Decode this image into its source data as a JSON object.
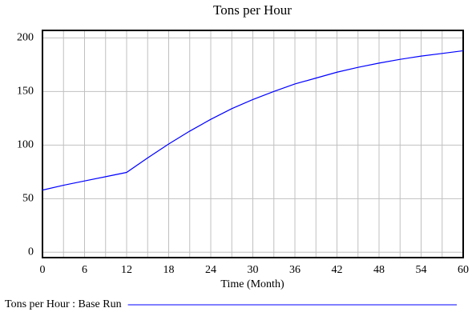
{
  "chart_data": {
    "type": "line",
    "title": "Tons per Hour",
    "x_label": "Time (Month)",
    "x": [
      0,
      3,
      6,
      9,
      12,
      15,
      18,
      21,
      24,
      27,
      30,
      33,
      36,
      39,
      42,
      45,
      48,
      51,
      54,
      57,
      60
    ],
    "series": [
      {
        "name": "Tons per Hour : Base Run",
        "color": "#0000ff",
        "values": [
          58,
          62.5,
          66.5,
          70.5,
          74.5,
          88,
          101,
          113,
          124,
          134,
          142.5,
          150,
          157,
          162.5,
          168,
          172.5,
          176.5,
          180,
          183,
          185.5,
          188
        ]
      }
    ],
    "xlim": [
      0,
      60
    ],
    "xticks": [
      0,
      6,
      12,
      18,
      24,
      30,
      36,
      42,
      48,
      54,
      60
    ],
    "xgrid": [
      3,
      9,
      15,
      21,
      27,
      33,
      39,
      45,
      51,
      57
    ],
    "ylim": [
      -5,
      207
    ],
    "yticks": [
      0,
      50,
      100,
      150,
      200
    ],
    "grid": true
  }
}
